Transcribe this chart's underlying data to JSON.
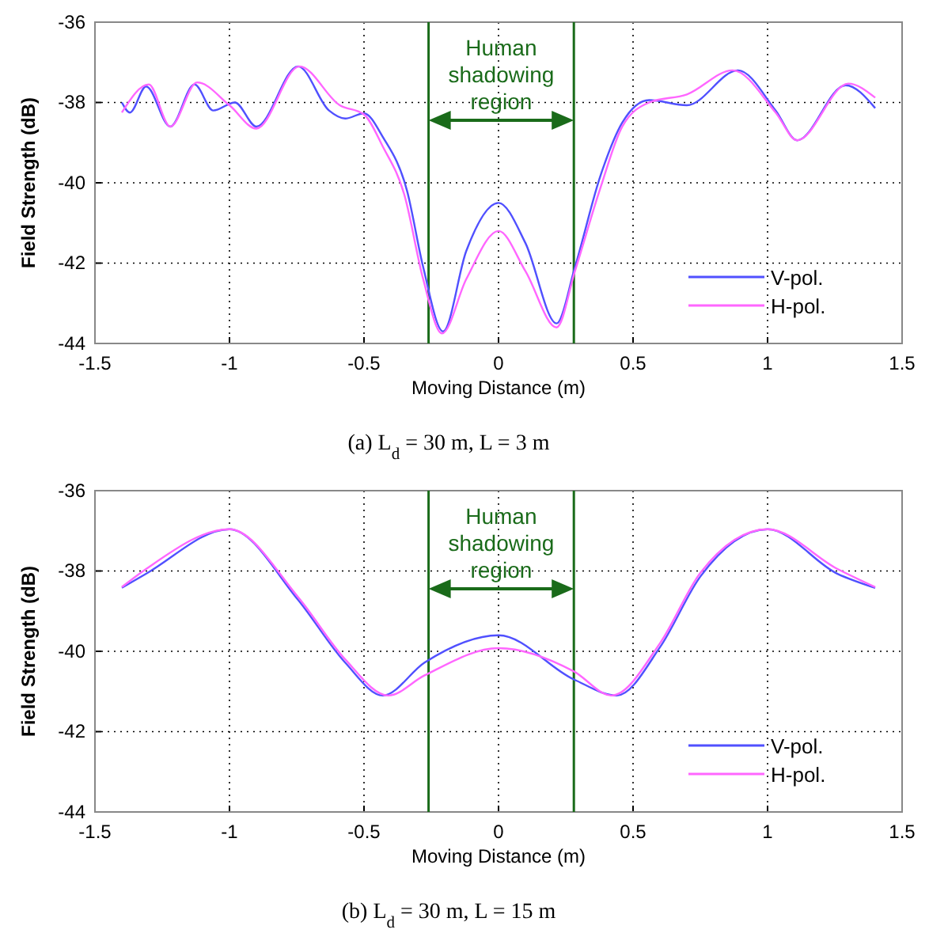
{
  "chart_data": [
    {
      "type": "line",
      "title": "(a) L$_{d}$ = 30 m, L = 3 m",
      "xlabel": "Moving Distance (m)",
      "ylabel": "Field Strength (dB)",
      "xlim": [
        -1.5,
        1.5
      ],
      "ylim": [
        -44,
        -36
      ],
      "xticks": [
        -1.5,
        -1,
        -0.5,
        0,
        0.5,
        1,
        1.5
      ],
      "yticks": [
        -44,
        -42,
        -40,
        -38,
        -36
      ],
      "grid": true,
      "legend": "bottom right",
      "line_style": "solid",
      "marker": "none",
      "ref_lines": [
        {
          "axis": "x",
          "value": -0.26,
          "color": "#1a6b1a"
        },
        {
          "axis": "x",
          "value": 0.28,
          "color": "#1a6b1a"
        }
      ],
      "annotations": [
        "Human shadowing region"
      ],
      "series": [
        {
          "name": "V-pol.",
          "color": "#5050ff",
          "x": [
            -1.4,
            -1.37,
            -1.31,
            -1.22,
            -1.13,
            -1.06,
            -0.98,
            -0.9,
            -0.745,
            -0.63,
            -0.57,
            -0.5,
            -0.43,
            -0.34,
            -0.28,
            -0.206,
            -0.12,
            0,
            0.1,
            0.216,
            0.284,
            0.38,
            0.46,
            0.56,
            0.7,
            0.89,
            1.03,
            1.11,
            1.29,
            1.4
          ],
          "values": [
            -38,
            -38.25,
            -37.6,
            -38.6,
            -37.55,
            -38.2,
            -38,
            -38.6,
            -37.1,
            -38.2,
            -38.4,
            -38.27,
            -38.86,
            -40.2,
            -42.1,
            -43.7,
            -41.7,
            -40.5,
            -41.5,
            -43.5,
            -42.1,
            -39.8,
            -38.5,
            -37.94,
            -38.07,
            -37.2,
            -38.2,
            -38.94,
            -37.57,
            -38.14
          ]
        },
        {
          "name": "H-pol.",
          "color": "#ff66ff",
          "x": [
            -1.4,
            -1.3,
            -1.22,
            -1.12,
            -1,
            -0.9,
            -0.74,
            -0.59,
            -0.5,
            -0.43,
            -0.35,
            -0.28,
            -0.21,
            -0.12,
            0,
            0.1,
            0.216,
            0.284,
            0.38,
            0.46,
            0.56,
            0.7,
            0.87,
            1.03,
            1.11,
            1.3,
            1.4
          ],
          "values": [
            -38.25,
            -37.55,
            -38.6,
            -37.5,
            -38.07,
            -38.65,
            -37.1,
            -38.07,
            -38.3,
            -39.1,
            -40.3,
            -42.4,
            -43.75,
            -42.4,
            -41.2,
            -42.2,
            -43.6,
            -42.2,
            -40.1,
            -38.6,
            -38,
            -37.8,
            -37.2,
            -38.25,
            -38.94,
            -37.53,
            -37.88
          ]
        }
      ]
    },
    {
      "type": "line",
      "title": "(b) L$_{d}$ = 30 m, L = 15 m",
      "xlabel": "Moving Distance (m)",
      "ylabel": "Field Strength (dB)",
      "xlim": [
        -1.5,
        1.5
      ],
      "ylim": [
        -44,
        -36
      ],
      "xticks": [
        -1.5,
        -1,
        -0.5,
        0,
        0.5,
        1,
        1.5
      ],
      "yticks": [
        -44,
        -42,
        -40,
        -38,
        -36
      ],
      "grid": true,
      "legend": "bottom right",
      "line_style": "solid",
      "marker": "none",
      "ref_lines": [
        {
          "axis": "x",
          "value": -0.26,
          "color": "#1a6b1a"
        },
        {
          "axis": "x",
          "value": 0.28,
          "color": "#1a6b1a"
        }
      ],
      "annotations": [
        "Human shadowing region"
      ],
      "series": [
        {
          "name": "V-pol.",
          "color": "#5050ff",
          "x": [
            -1.4,
            -1.31,
            -1,
            -0.745,
            -0.57,
            -0.43,
            -0.275,
            0,
            0.28,
            0.44,
            0.6,
            0.75,
            1,
            1.26,
            1.4
          ],
          "values": [
            -38.42,
            -38.07,
            -36.96,
            -38.72,
            -40.28,
            -41.1,
            -40.28,
            -39.6,
            -40.7,
            -41.1,
            -39.9,
            -38.14,
            -36.96,
            -38.07,
            -38.42
          ]
        },
        {
          "name": "H-pol.",
          "color": "#ff66ff",
          "x": [
            -1.4,
            -1.31,
            -1,
            -0.745,
            -0.57,
            -0.41,
            -0.275,
            0,
            0.28,
            0.42,
            0.6,
            0.75,
            1,
            1.26,
            1.4
          ],
          "values": [
            -38.4,
            -37.95,
            -36.96,
            -38.65,
            -40.2,
            -41.1,
            -40.6,
            -39.92,
            -40.5,
            -41.1,
            -39.8,
            -38.05,
            -36.96,
            -37.95,
            -38.4
          ]
        }
      ]
    }
  ]
}
